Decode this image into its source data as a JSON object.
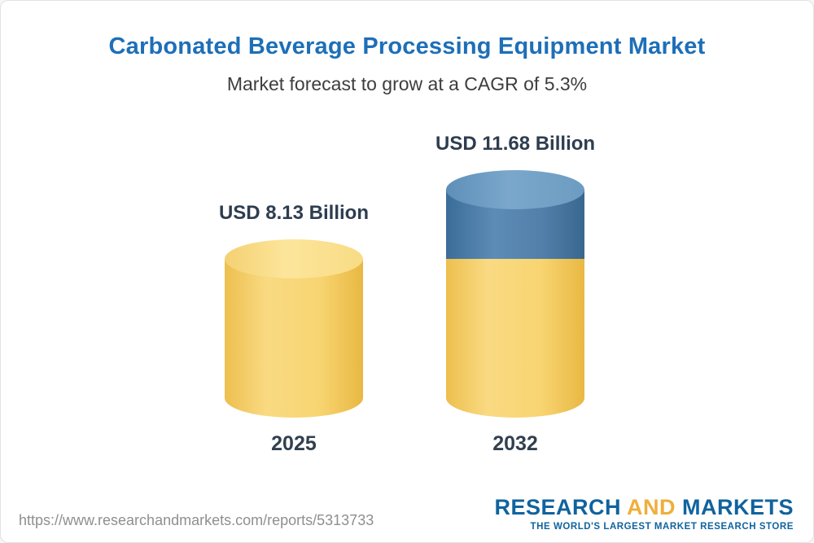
{
  "chart_data": {
    "type": "bar",
    "variant": "3d-cylinder",
    "title": "Carbonated Beverage Processing Equipment Market",
    "subtitle": "Market forecast to grow at a CAGR of 5.3%",
    "cagr_percent": 5.3,
    "unit": "USD Billion",
    "categories": [
      "2025",
      "2032"
    ],
    "values": [
      8.13,
      11.68
    ],
    "value_labels": [
      "USD 8.13 Billion",
      "USD 11.68 Billion"
    ],
    "legend": false,
    "grid": false,
    "notes": "2032 cylinder shows the growth above the 2025 baseline as a blue top segment; baseline portion is yellow",
    "colors": {
      "title_blue": "#1d6fb8",
      "bar_base_yellow": "#f6d26a",
      "bar_growth_blue": "#4a7ba6",
      "label_dark": "#2e3d4f"
    }
  },
  "footer": {
    "url": "https://www.researchandmarkets.com/reports/5313733",
    "logo": {
      "word1": "RESEARCH",
      "word2": "AND",
      "word3": "MARKETS",
      "tagline": "THE WORLD'S LARGEST MARKET RESEARCH STORE",
      "blue": "#10639e",
      "gold": "#efaf3b"
    }
  }
}
